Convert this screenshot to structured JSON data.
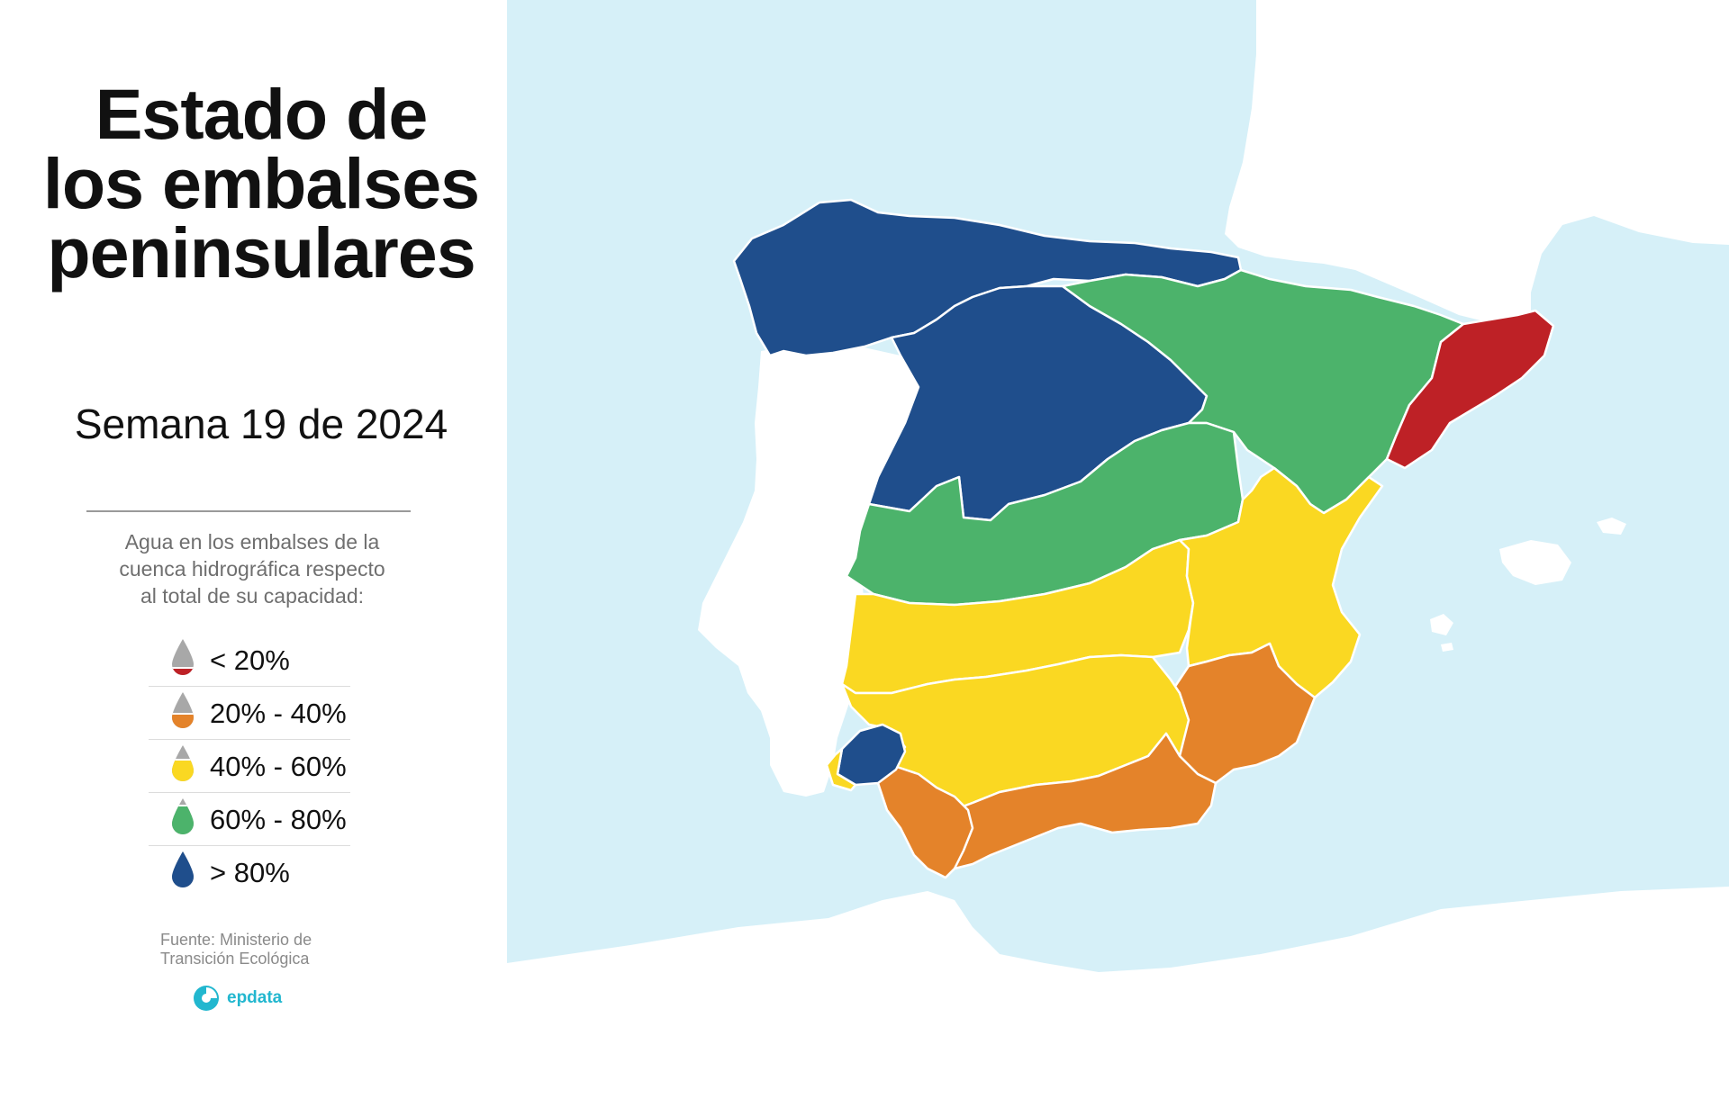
{
  "title": {
    "line1": "Estado de",
    "line2": "los embalses",
    "line3": "peninsulares"
  },
  "subtitle": "Semana 19 de 2024",
  "legend": {
    "description": {
      "line1": "Agua en los embalses de la",
      "line2": "cuenca hidrográfica respecto",
      "line3": "al total de su capacidad:"
    },
    "items": [
      {
        "label": "< 20%",
        "color": "#be2126",
        "fill_fraction": 0.2
      },
      {
        "label": "20% - 40%",
        "color": "#e4832a",
        "fill_fraction": 0.4
      },
      {
        "label": "40% - 60%",
        "color": "#fad822",
        "fill_fraction": 0.6
      },
      {
        "label": "60% - 80%",
        "color": "#4cb36b",
        "fill_fraction": 0.8
      },
      {
        "label": "> 80%",
        "color": "#1f4e8c",
        "fill_fraction": 1.0
      }
    ],
    "drop_empty_color": "#a8a8a8"
  },
  "source": {
    "line1": "Fuente: Ministerio de",
    "line2": "Transición Ecológica"
  },
  "brand": {
    "name": "epdata",
    "color": "#22b7cf"
  },
  "map": {
    "sea_color": "#d6f0f8",
    "land_color": "#ffffff",
    "basin_border_color": "#ffffff",
    "basins": [
      {
        "id": "north",
        "category": "> 80%",
        "color": "#1f4e8c"
      },
      {
        "id": "duero",
        "category": "> 80%",
        "color": "#1f4e8c"
      },
      {
        "id": "ebro",
        "category": "60% - 80%",
        "color": "#4cb36b"
      },
      {
        "id": "tajo",
        "category": "60% - 80%",
        "color": "#4cb36b"
      },
      {
        "id": "catalonia-internal",
        "category": "< 20%",
        "color": "#be2126"
      },
      {
        "id": "guadiana",
        "category": "40% - 60%",
        "color": "#fad822"
      },
      {
        "id": "jucar",
        "category": "40% - 60%",
        "color": "#fad822"
      },
      {
        "id": "guadalquivir",
        "category": "40% - 60%",
        "color": "#fad822"
      },
      {
        "id": "segura",
        "category": "20% - 40%",
        "color": "#e4832a"
      },
      {
        "id": "andalusian-mediterranean",
        "category": "20% - 40%",
        "color": "#e4832a"
      },
      {
        "id": "tinto-odiel-piedras",
        "category": "> 80%",
        "color": "#1f4e8c"
      },
      {
        "id": "guadalete-barbate",
        "category": "20% - 40%",
        "color": "#e4832a"
      }
    ]
  }
}
